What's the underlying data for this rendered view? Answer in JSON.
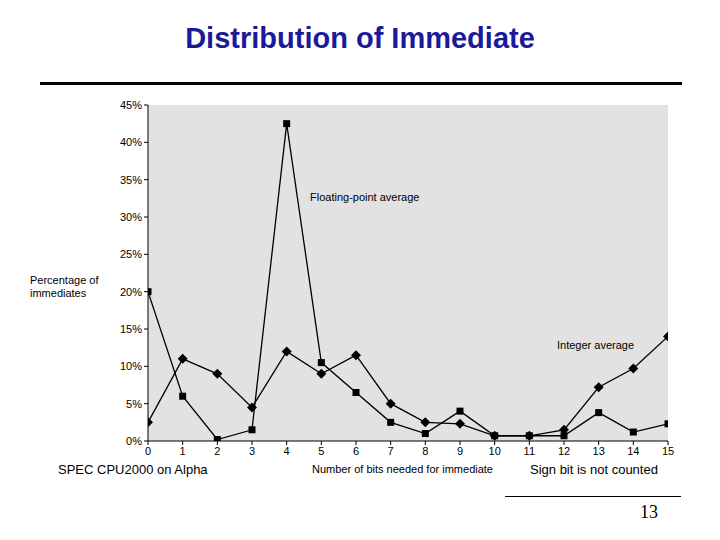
{
  "chart_data": {
    "type": "line",
    "title": "Distribution of Immediate",
    "x_label": "Number of bits needed for immediate",
    "y_label": "Percentage of immediates",
    "x": [
      0,
      1,
      2,
      3,
      4,
      5,
      6,
      7,
      8,
      9,
      10,
      11,
      12,
      13,
      14,
      15
    ],
    "series": [
      {
        "name": "Floating-point average",
        "color": "#000000",
        "marker": "square",
        "values": [
          20,
          6,
          0.2,
          1.5,
          42.5,
          10.5,
          6.5,
          2.5,
          1,
          4,
          0.7,
          0.7,
          0.7,
          3.8,
          1.2,
          2.3
        ]
      },
      {
        "name": "Integer average",
        "color": "#000000",
        "marker": "diamond",
        "values": [
          2.5,
          11,
          9,
          4.5,
          12,
          9,
          11.5,
          5,
          2.5,
          2.3,
          0.7,
          0.7,
          1.5,
          7.2,
          9.7,
          14
        ]
      }
    ],
    "xlim": [
      0,
      15
    ],
    "xticks": [
      0,
      1,
      2,
      3,
      4,
      5,
      6,
      7,
      8,
      9,
      10,
      11,
      12,
      13,
      14,
      15
    ],
    "ylim": [
      0,
      45
    ],
    "yticks": [
      {
        "value": 0,
        "label": "0%"
      },
      {
        "value": 5,
        "label": "5%"
      },
      {
        "value": 10,
        "label": "10%"
      },
      {
        "value": 15,
        "label": "15%"
      },
      {
        "value": 20,
        "label": "20%"
      },
      {
        "value": 25,
        "label": "25%"
      },
      {
        "value": 30,
        "label": "30%"
      },
      {
        "value": 35,
        "label": "35%"
      },
      {
        "value": 40,
        "label": "40%"
      },
      {
        "value": 45,
        "label": "45%"
      }
    ],
    "grid": false,
    "annotations": [
      "SPEC CPU2000 on Alpha",
      "Sign bit is not counted",
      "13"
    ]
  }
}
